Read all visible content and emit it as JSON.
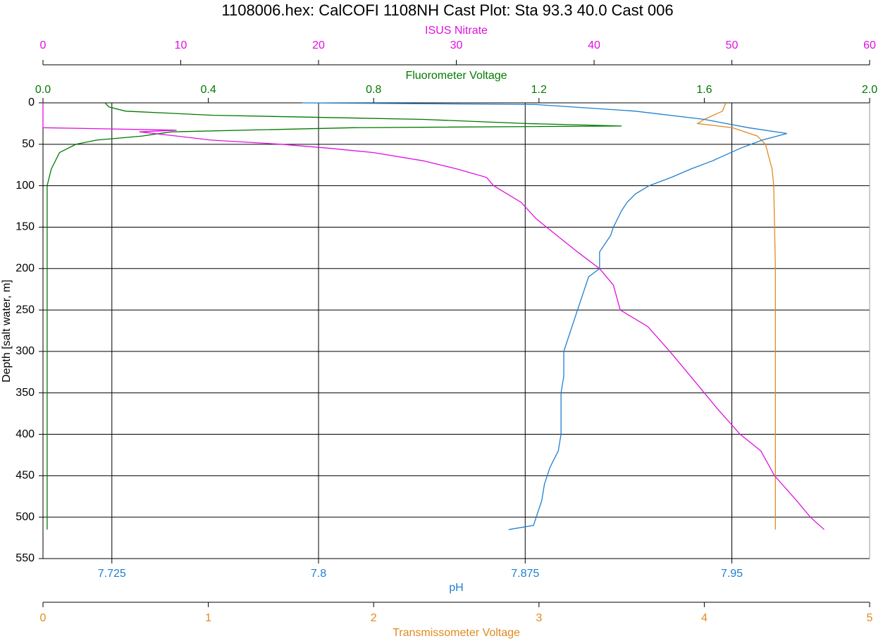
{
  "chart_data": {
    "type": "line",
    "title": "1108006.hex: CalCOFI 1108NH Cast Plot: Sta 93.3 40.0 Cast 006",
    "ylabel": "Depth [salt water, m]",
    "ylim": [
      0,
      550
    ],
    "yticks": [
      0,
      50,
      100,
      150,
      200,
      250,
      300,
      350,
      400,
      450,
      500,
      550
    ],
    "grid": true,
    "x_axes": [
      {
        "title": "ISUS Nitrate",
        "color": "#e010e0",
        "xlim": [
          0,
          60
        ],
        "xticks": [
          0,
          10,
          20,
          30,
          40,
          50,
          60
        ]
      },
      {
        "title": "Fluorometer Voltage",
        "color": "#007a00",
        "xlim": [
          0,
          2
        ],
        "xticks": [
          {
            "value": 0,
            "label": "0.0"
          },
          0.4,
          0.8,
          1.2,
          1.6,
          {
            "value": 2,
            "label": "2.0"
          }
        ]
      },
      {
        "title": "pH",
        "color": "#1f7fd0",
        "xlim": [
          7.7,
          8.0
        ],
        "xticks": [
          7.725,
          7.8,
          7.875,
          7.95
        ]
      },
      {
        "title": "Transmissometer Voltage",
        "color": "#e08a20",
        "xlim": [
          0,
          5
        ],
        "xticks": [
          0,
          1,
          2,
          3,
          4,
          5
        ]
      }
    ],
    "series": [
      {
        "axis": 1,
        "color": "#007a00",
        "depth": [
          0,
          5,
          10,
          15,
          20,
          25,
          28,
          30,
          35,
          40,
          45,
          50,
          60,
          80,
          100,
          200,
          300,
          400,
          515
        ],
        "values": [
          0.15,
          0.16,
          0.2,
          0.41,
          0.92,
          1.17,
          1.4,
          0.75,
          0.31,
          0.24,
          0.13,
          0.08,
          0.04,
          0.02,
          0.01,
          0.01,
          0.01,
          0.01,
          0.01
        ]
      },
      {
        "axis": 3,
        "color": "#e08a20",
        "depth": [
          0,
          10,
          20,
          25,
          30,
          40,
          50,
          80,
          100,
          200,
          300,
          400,
          515
        ],
        "values": [
          4.13,
          4.11,
          4.0,
          3.96,
          4.17,
          4.32,
          4.37,
          4.41,
          4.42,
          4.43,
          4.43,
          4.43,
          4.43
        ]
      },
      {
        "axis": 2,
        "color": "#1f7fd0",
        "depth": [
          0,
          2,
          10,
          20,
          30,
          37,
          45,
          55,
          70,
          80,
          90,
          100,
          110,
          120,
          130,
          150,
          160,
          170,
          180,
          200,
          210,
          230,
          250,
          270,
          300,
          330,
          350,
          380,
          400,
          420,
          440,
          460,
          480,
          500,
          510,
          515
        ],
        "values": [
          7.794,
          7.879,
          7.915,
          7.94,
          7.956,
          7.97,
          7.961,
          7.953,
          7.943,
          7.935,
          7.928,
          7.92,
          7.915,
          7.912,
          7.91,
          7.907,
          7.906,
          7.904,
          7.902,
          7.902,
          7.898,
          7.896,
          7.894,
          7.892,
          7.889,
          7.889,
          7.888,
          7.888,
          7.888,
          7.887,
          7.884,
          7.882,
          7.881,
          7.879,
          7.878,
          7.869
        ]
      },
      {
        "axis": 0,
        "color": "#e010e0",
        "depth": [
          0,
          28,
          30,
          33,
          35,
          40,
          45,
          50,
          55,
          60,
          70,
          80,
          90,
          100,
          120,
          140,
          160,
          180,
          200,
          220,
          250,
          270,
          300,
          330,
          350,
          370,
          400,
          420,
          450,
          480,
          500,
          515
        ],
        "values": [
          0,
          0,
          0,
          9.7,
          7,
          9.7,
          12.2,
          17.3,
          20.9,
          24,
          27.6,
          30.1,
          32.2,
          32.7,
          34.7,
          35.8,
          37.3,
          38.8,
          40.4,
          41.4,
          41.9,
          43.9,
          45.5,
          47,
          48,
          49,
          50.6,
          52.1,
          53.1,
          54.7,
          55.7,
          56.7
        ]
      }
    ]
  }
}
